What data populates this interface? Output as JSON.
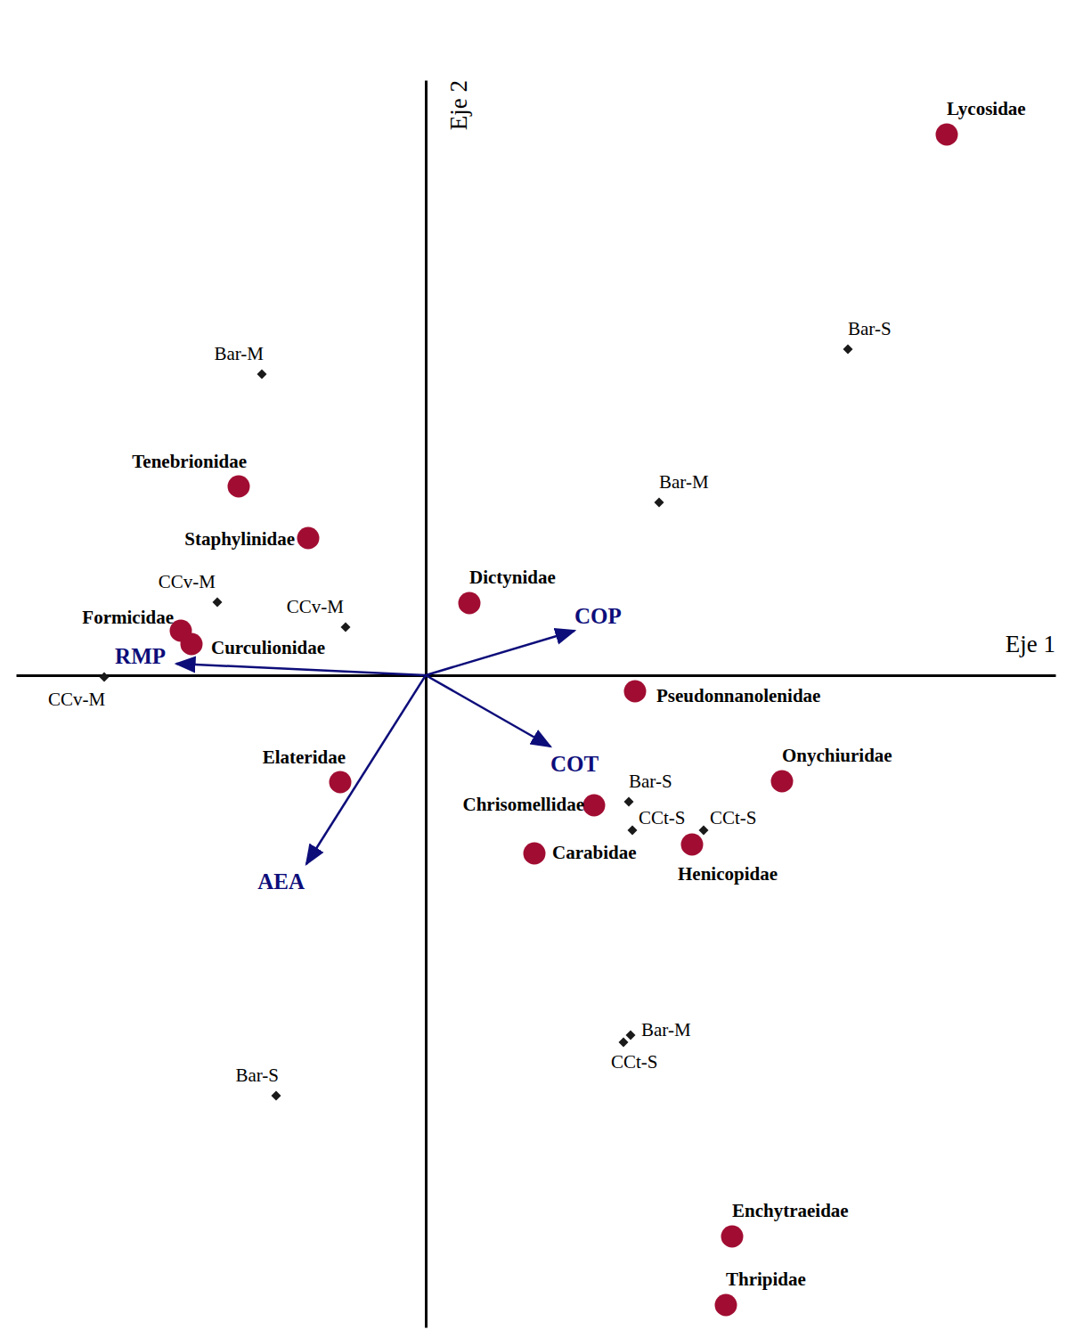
{
  "chart_data": {
    "type": "biplot",
    "x_label": "Eje 1",
    "y_label": "Eje 2",
    "xlim": [
      -4.6,
      7.07
    ],
    "ylim": [
      -7.32,
      6.68
    ],
    "tick_labels": false,
    "grid": false,
    "series": [
      {
        "type": "scatter",
        "marker": "circle",
        "color": "#a10d32",
        "labels": [
          "Lycosidae",
          "Tenebrionidae",
          "Staphylinidae",
          "Dictynidae",
          "Formicidae",
          "Curculionidae",
          "Pseudonnanolenidae",
          "Elateridae",
          "Onychiuridae",
          "Chrisomellidae",
          "Carabidae",
          "Henicopidae",
          "Enchytraeidae",
          "Thripidae"
        ],
        "x": [
          5.85,
          -2.1,
          -1.32,
          0.49,
          -2.75,
          -2.63,
          2.35,
          -0.96,
          4.0,
          1.89,
          1.22,
          2.99,
          3.44,
          3.37
        ],
        "y": [
          6.07,
          2.12,
          1.54,
          0.81,
          0.5,
          0.35,
          -0.18,
          -1.2,
          -1.19,
          -1.46,
          -2.0,
          -1.9,
          -6.3,
          -7.07
        ]
      },
      {
        "type": "scatter",
        "marker": "diamond",
        "color": "#1a1a1a",
        "labels": [
          "Bar-S",
          "Bar-M",
          "Bar-M",
          "CCv-M",
          "CCv-M",
          "CCv-M",
          "Bar-S",
          "CCt-S",
          "CCt-S",
          "Bar-M",
          "CCt-S",
          "Bar-S"
        ],
        "x": [
          4.74,
          -1.84,
          2.62,
          -2.34,
          -0.9,
          -3.61,
          2.28,
          2.32,
          3.12,
          2.3,
          2.22,
          -1.68
        ],
        "y": [
          3.66,
          3.38,
          1.94,
          0.82,
          0.54,
          -0.02,
          -1.42,
          -1.74,
          -1.74,
          -4.04,
          -4.12,
          -4.72
        ]
      },
      {
        "type": "vector",
        "marker": "arrow",
        "color": "#0d0d7a",
        "labels": [
          "RMP",
          "COP",
          "COT",
          "AEA"
        ],
        "x": [
          -2.8,
          1.67,
          1.4,
          -1.34
        ],
        "y": [
          0.13,
          0.5,
          -0.8,
          -2.12
        ]
      }
    ]
  }
}
